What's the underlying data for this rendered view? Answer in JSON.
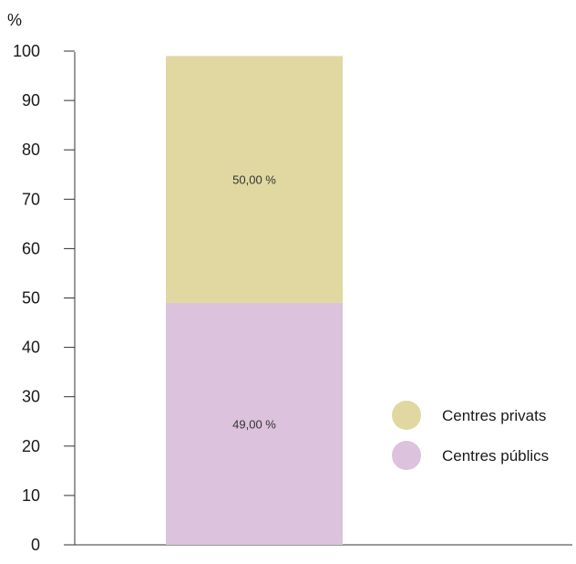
{
  "chart_data": {
    "type": "bar",
    "stacked": true,
    "title": "",
    "xlabel": "",
    "ylabel": "%",
    "ylim": [
      0,
      100
    ],
    "yticks": [
      0,
      10,
      20,
      30,
      40,
      50,
      60,
      70,
      80,
      90,
      100
    ],
    "categories": [
      ""
    ],
    "series": [
      {
        "name": "Centres públics",
        "values": [
          49.0
        ],
        "label": "49,00 %",
        "color": "#dcc2dc"
      },
      {
        "name": "Centres privats",
        "values": [
          50.0
        ],
        "label": "50,00 %",
        "color": "#e0d8a0"
      }
    ],
    "legend": {
      "placement": "right",
      "items": [
        "Centres privats",
        "Centres públics"
      ]
    },
    "grid": false
  }
}
